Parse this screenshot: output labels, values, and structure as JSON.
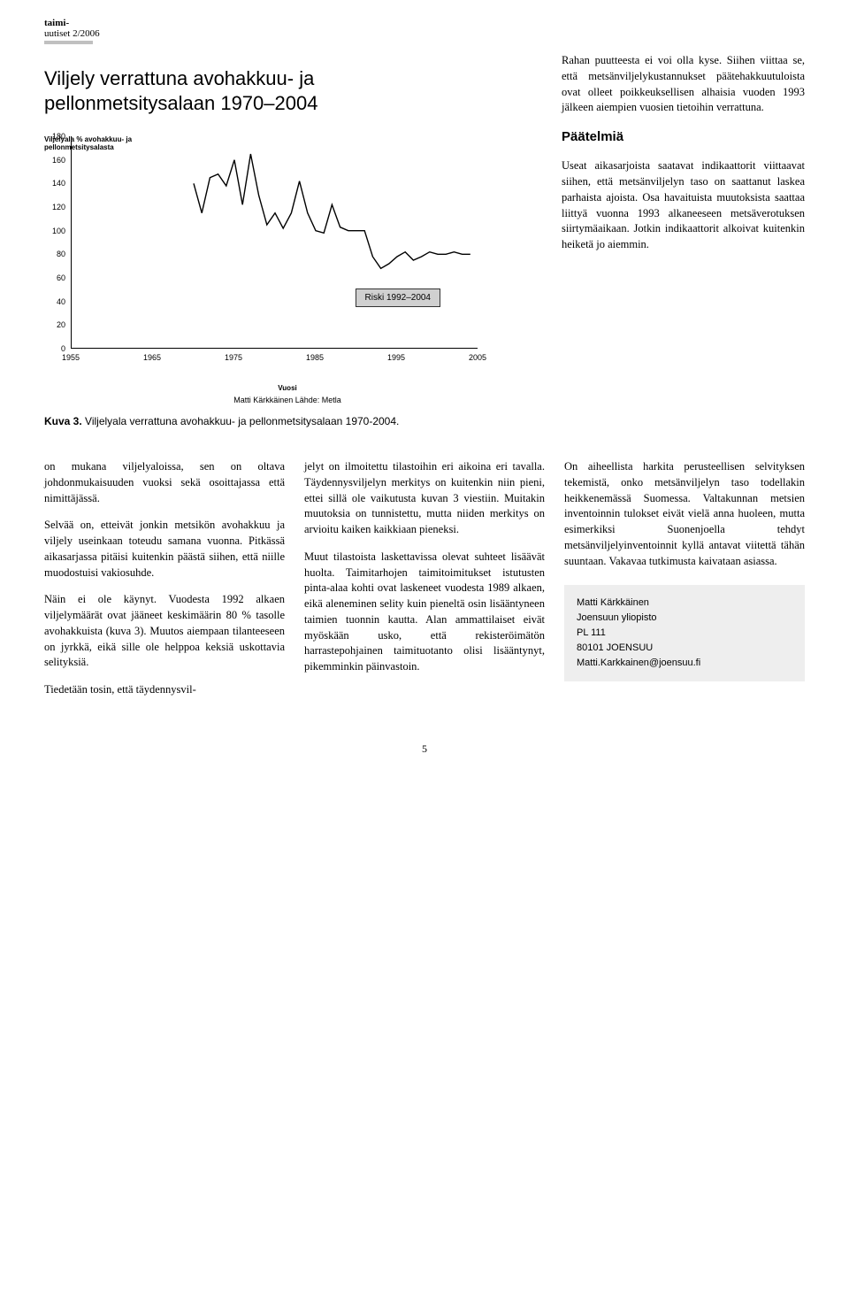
{
  "header": {
    "line1": "taimi-",
    "line2": "uutiset 2/2006"
  },
  "chart": {
    "type": "line",
    "title_line1": "Viljely verrattuna avohakkuu- ja",
    "title_line2": "pellonmetsitysalaan 1970–2004",
    "yaxis_label_line1": "Viljelyala % avohakkuu- ja",
    "yaxis_label_line2": "pellonmetsitysalasta",
    "ylim": [
      0,
      180
    ],
    "yticks": [
      0,
      20,
      40,
      60,
      80,
      100,
      120,
      140,
      160,
      180
    ],
    "xlim": [
      1955,
      2005
    ],
    "xticks": [
      1955,
      1965,
      1975,
      1985,
      1995,
      2005
    ],
    "xlabel": "Vuosi",
    "credit": "Matti Kärkkäinen   Lähde: Metla",
    "line_color": "#000000",
    "background_color": "#ffffff",
    "risk_box_label": "Riski 1992–2004",
    "risk_box_bg": "#d0d0d0",
    "data_years": [
      1970,
      1971,
      1972,
      1973,
      1974,
      1975,
      1976,
      1977,
      1978,
      1979,
      1980,
      1981,
      1982,
      1983,
      1984,
      1985,
      1986,
      1987,
      1988,
      1989,
      1990,
      1991,
      1992,
      1993,
      1994,
      1995,
      1996,
      1997,
      1998,
      1999,
      2000,
      2001,
      2002,
      2003,
      2004
    ],
    "data_values": [
      140,
      115,
      145,
      148,
      138,
      160,
      122,
      165,
      130,
      105,
      115,
      102,
      115,
      142,
      115,
      100,
      98,
      122,
      103,
      100,
      100,
      100,
      78,
      68,
      72,
      78,
      82,
      75,
      78,
      82,
      80,
      80,
      82,
      80,
      80
    ]
  },
  "figure_caption": "Kuva 3.  Viljelyala verrattuna avohakkuu- ja pellonmetsitysalaan 1970-2004.",
  "right_top": {
    "p1": "Rahan puutteesta ei voi olla kyse. Siihen viittaa se, että metsänviljelykustannukset päätehakkuutuloista ovat olleet poikkeuksellisen alhaisia vuoden 1993 jälkeen aiempien vuosien tietoihin verrattuna.",
    "section_h": "Päätelmiä",
    "p2": "Useat aikasarjoista saatavat indikaattorit viittaavat siihen, että metsänviljelyn taso on saattanut laskea parhaista ajoista. Osa havaituista muutoksista saattaa liittyä vuonna 1993 alkaneeseen metsäverotuksen siirtymäaikaan. Jotkin indikaattorit alkoivat kuitenkin heiketä jo aiemmin."
  },
  "col1": {
    "p1": "on mukana viljelyaloissa, sen on oltava johdonmukaisuuden vuoksi sekä osoittajassa että nimittäjässä.",
    "p2": "Selvää on, etteivät jonkin metsikön avohakkuu ja viljely useinkaan toteudu samana vuonna. Pitkässä aikasarjassa pitäisi kuitenkin päästä siihen, että niille muodostuisi vakiosuhde.",
    "p3": "Näin ei ole käynyt. Vuodesta 1992 alkaen viljelymäärät ovat jääneet keskimäärin 80 % tasolle avohakkuista (kuva 3). Muutos aiempaan tilanteeseen on jyrkkä, eikä sille ole helppoa keksiä uskottavia selityksiä.",
    "p4": "Tiedetään tosin, että täydennysvil-"
  },
  "col2": {
    "p1": "jelyt on ilmoitettu tilastoihin eri aikoina eri tavalla. Täydennysviljelyn merkitys on kuitenkin niin pieni, ettei sillä ole vaikutusta kuvan 3 viestiin. Muitakin muutoksia on tunnistettu, mutta niiden merkitys on arvioitu kaiken kaikkiaan pieneksi.",
    "p2": "Muut tilastoista laskettavissa olevat suhteet lisäävät huolta. Taimitarhojen taimitoimitukset istutusten pinta-alaa kohti ovat laskeneet vuodesta 1989 alkaen, eikä aleneminen selity kuin pieneltä osin lisääntyneen taimien tuonnin kautta. Alan ammattilaiset eivät myöskään usko, että rekisteröimätön harrastepohjainen taimituotanto olisi lisääntynyt, pikemminkin päinvastoin."
  },
  "col3": {
    "p1": "On aiheellista harkita perusteellisen selvityksen tekemistä, onko metsänviljelyn taso todellakin heikkenemässä Suomessa. Valtakunnan metsien inventoinnin tulokset eivät vielä anna huoleen, mutta esimerkiksi Suonenjoella tehdyt metsänviljelyinventoinnit kyllä antavat viitettä tähän suuntaan. Vakavaa tutkimusta kaivataan asiassa."
  },
  "author_box": {
    "name": "Matti Kärkkäinen",
    "affiliation": "Joensuun yliopisto",
    "address": "PL 111",
    "postal": "80101 JOENSUU",
    "email": "Matti.Karkkainen@joensuu.fi"
  },
  "page_number": "5"
}
